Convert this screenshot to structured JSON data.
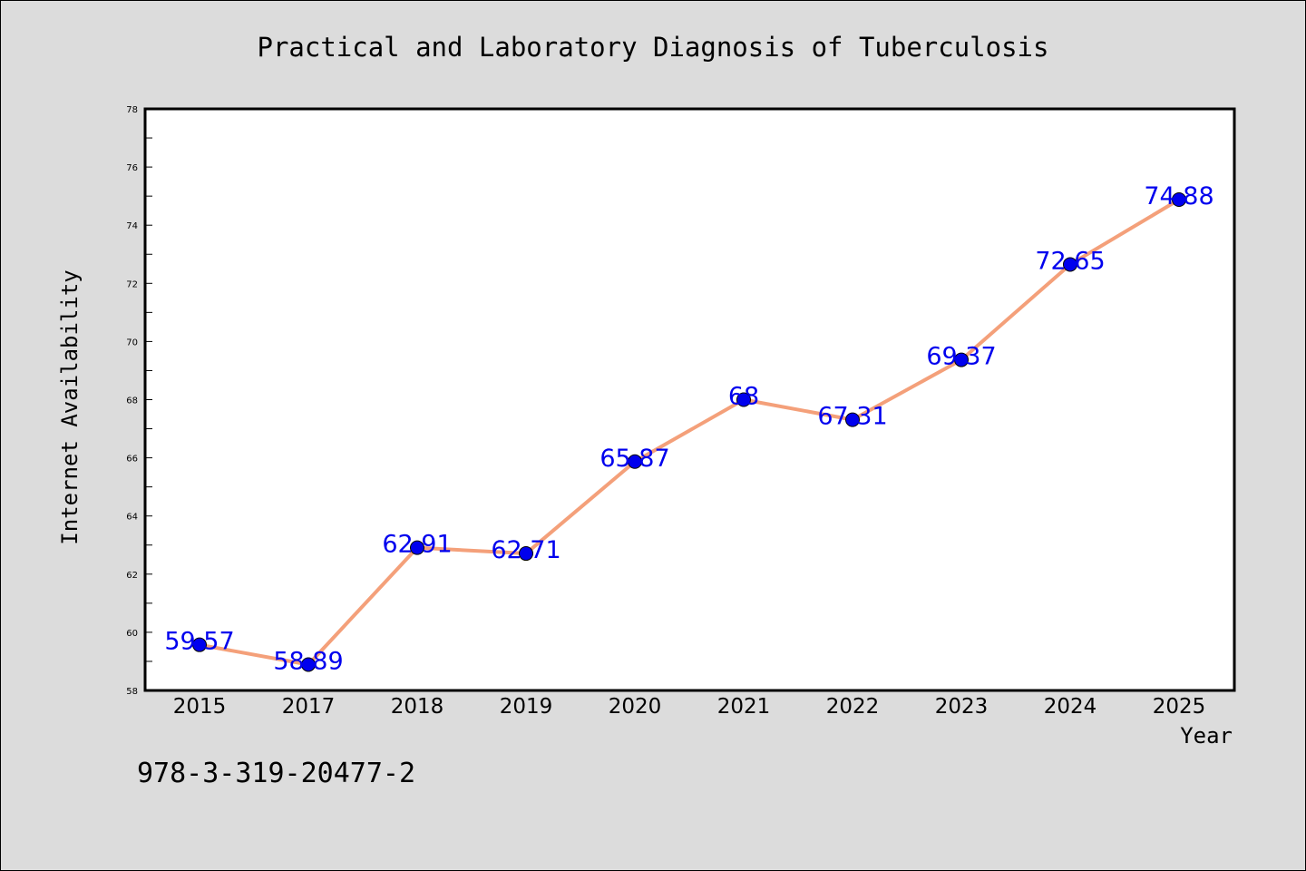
{
  "chart_data": {
    "type": "line",
    "title": "Practical and Laboratory Diagnosis of Tuberculosis",
    "xlabel": "Year",
    "ylabel": "Internet Availability",
    "x": [
      "2015",
      "2017",
      "2018",
      "2019",
      "2020",
      "2021",
      "2022",
      "2023",
      "2024",
      "2025"
    ],
    "values": [
      59.57,
      58.89,
      62.91,
      62.71,
      65.87,
      68,
      67.31,
      69.37,
      72.65,
      74.88
    ],
    "data_labels": [
      "59.57",
      "58.89",
      "62.91",
      "62.71",
      "65.87",
      "68",
      "67.31",
      "69.37",
      "72.65",
      "74.88"
    ],
    "ylim": [
      58,
      78
    ],
    "yticks": [
      58,
      60,
      62,
      64,
      66,
      68,
      70,
      72,
      74,
      76,
      78
    ],
    "grid": false,
    "legend": "none",
    "line_color": "#f4a07a",
    "marker_color": "#0000ee",
    "label_color": "#0000ee"
  },
  "annotation": "978-3-319-20477-2"
}
